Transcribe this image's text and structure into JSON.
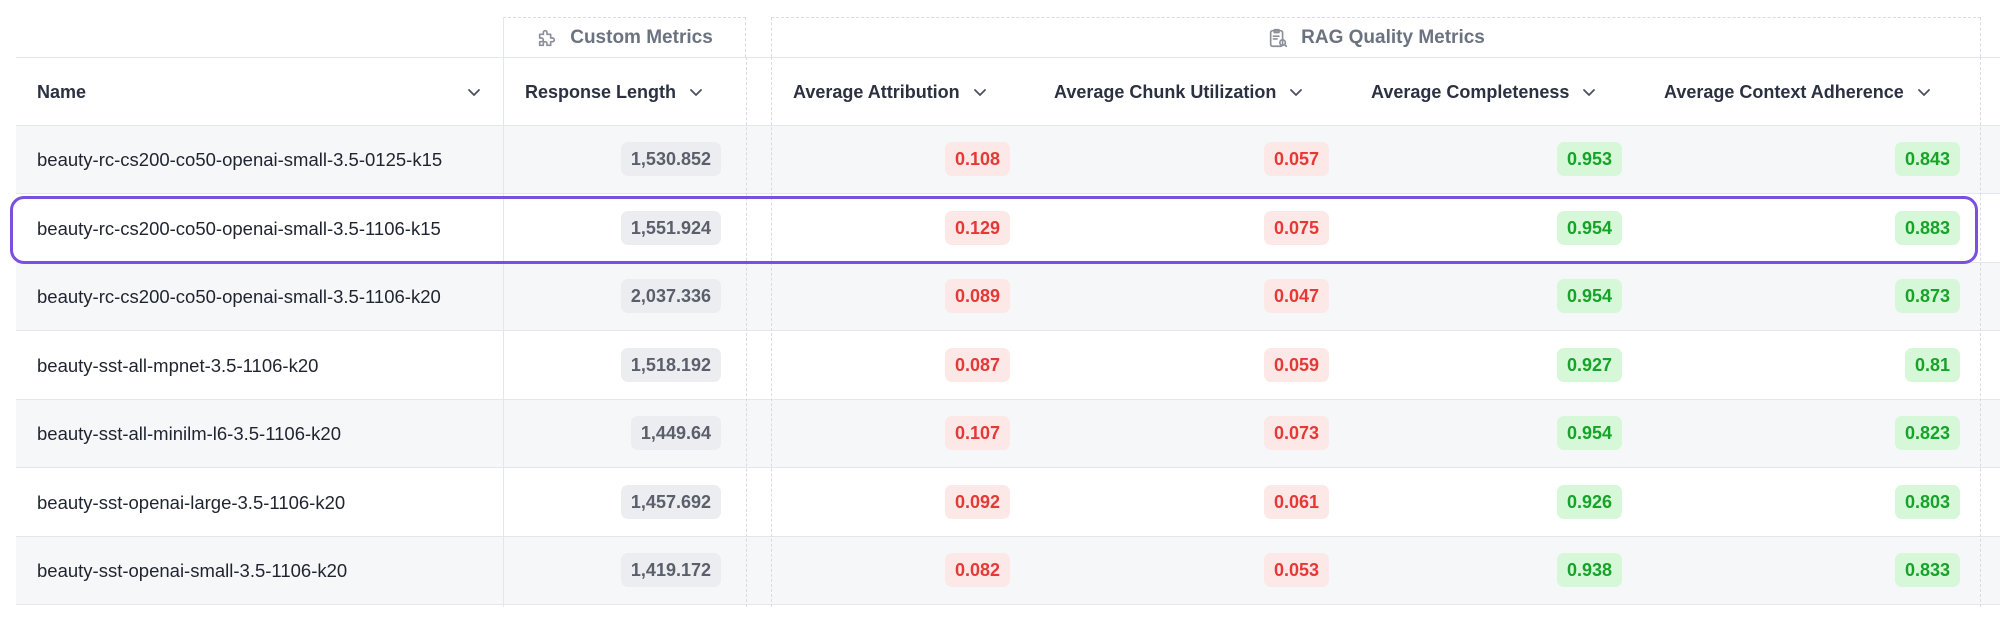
{
  "groups": {
    "custom": "Custom Metrics",
    "rag": "RAG Quality Metrics"
  },
  "columns": {
    "name": "Name",
    "response_length": "Response Length",
    "attribution": "Average Attribution",
    "chunk_utilization": "Average Chunk Utilization",
    "completeness": "Average Completeness",
    "context_adherence": "Average Context Adherence"
  },
  "icons": {
    "custom_group": "puzzle-icon",
    "rag_group": "clipboard-search-icon",
    "sort": "chevron-down-icon"
  },
  "colors": {
    "highlight": "#7b4fe0",
    "bad": "#e53935",
    "good": "#17a32a"
  },
  "selected_row": 1,
  "rows": [
    {
      "name": "beauty-rc-cs200-co50-openai-small-3.5-0125-k15",
      "response_length": "1,530.852",
      "attribution": "0.108",
      "chunk_utilization": "0.057",
      "completeness": "0.953",
      "context_adherence": "0.843"
    },
    {
      "name": "beauty-rc-cs200-co50-openai-small-3.5-1106-k15",
      "response_length": "1,551.924",
      "attribution": "0.129",
      "chunk_utilization": "0.075",
      "completeness": "0.954",
      "context_adherence": "0.883"
    },
    {
      "name": "beauty-rc-cs200-co50-openai-small-3.5-1106-k20",
      "response_length": "2,037.336",
      "attribution": "0.089",
      "chunk_utilization": "0.047",
      "completeness": "0.954",
      "context_adherence": "0.873"
    },
    {
      "name": "beauty-sst-all-mpnet-3.5-1106-k20",
      "response_length": "1,518.192",
      "attribution": "0.087",
      "chunk_utilization": "0.059",
      "completeness": "0.927",
      "context_adherence": "0.81"
    },
    {
      "name": "beauty-sst-all-minilm-l6-3.5-1106-k20",
      "response_length": "1,449.64",
      "attribution": "0.107",
      "chunk_utilization": "0.073",
      "completeness": "0.954",
      "context_adherence": "0.823"
    },
    {
      "name": "beauty-sst-openai-large-3.5-1106-k20",
      "response_length": "1,457.692",
      "attribution": "0.092",
      "chunk_utilization": "0.061",
      "completeness": "0.926",
      "context_adherence": "0.803"
    },
    {
      "name": "beauty-sst-openai-small-3.5-1106-k20",
      "response_length": "1,419.172",
      "attribution": "0.082",
      "chunk_utilization": "0.053",
      "completeness": "0.938",
      "context_adherence": "0.833"
    }
  ]
}
